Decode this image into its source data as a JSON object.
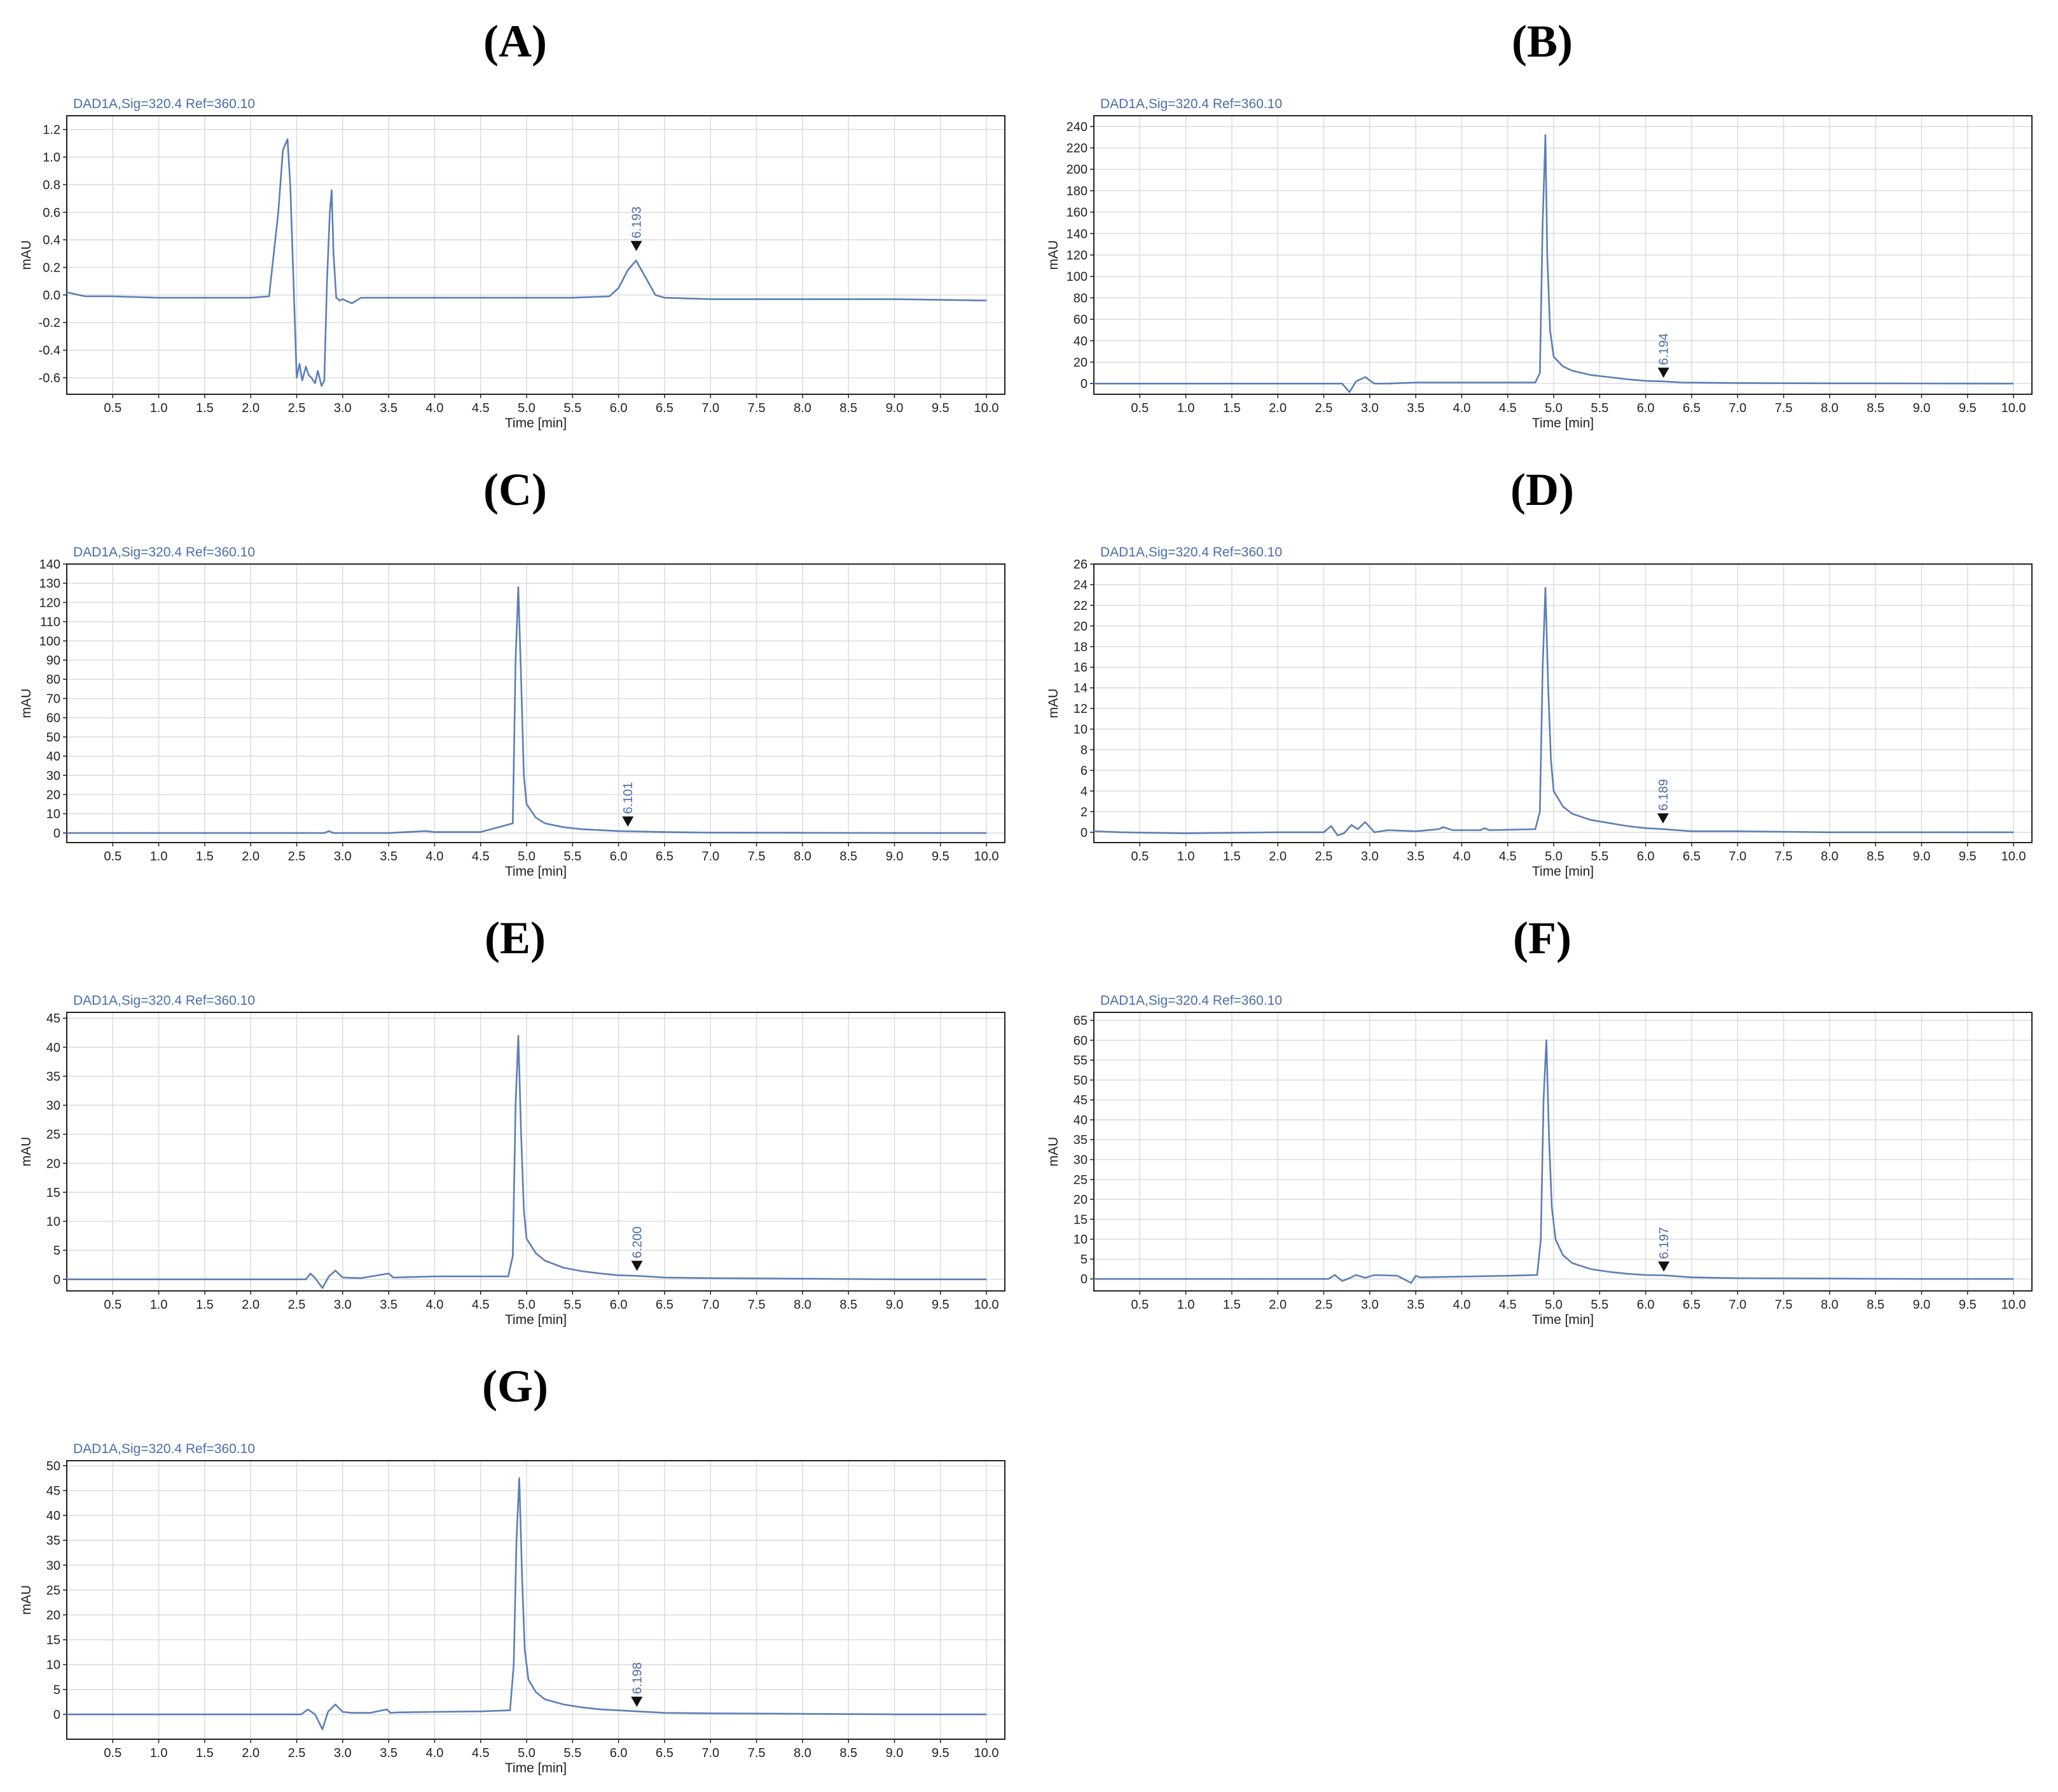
{
  "chart_data": [
    {
      "panel": "(A)",
      "type": "line",
      "signal": "DAD1A,Sig=320.4  Ref=360.10",
      "xlabel": "Time [min]",
      "ylabel": "mAU",
      "xlim": [
        0,
        10.2
      ],
      "ylim": [
        -0.72,
        1.3
      ],
      "xticks": [
        0.5,
        1.0,
        1.5,
        2.0,
        2.5,
        3.0,
        3.5,
        4.0,
        4.5,
        5.0,
        5.5,
        6.0,
        6.5,
        7.0,
        7.5,
        8.0,
        8.5,
        9.0,
        9.5,
        10.0
      ],
      "yticks": [
        -0.6,
        -0.4,
        -0.2,
        0.0,
        0.2,
        0.4,
        0.6,
        0.8,
        1.0,
        1.2
      ],
      "ytick_labels": [
        "-0.6",
        "-0.4",
        "-0.2",
        "0.0",
        "0.2",
        "0.4",
        "0.6",
        "0.8",
        "1.0",
        "1.2"
      ],
      "peak": {
        "label": "6.193",
        "x": 6.193,
        "y": 0.3
      },
      "series": [
        {
          "x": [
            0.0,
            0.2,
            0.5,
            1.0,
            1.5,
            2.0,
            2.2,
            2.3,
            2.35,
            2.4,
            2.43,
            2.47,
            2.5,
            2.53,
            2.56,
            2.6,
            2.63,
            2.66,
            2.7,
            2.73,
            2.77,
            2.8,
            2.83,
            2.86,
            2.88,
            2.9,
            2.93,
            2.97,
            3.0,
            3.1,
            3.2,
            3.3,
            3.5,
            4.0,
            4.5,
            5.0,
            5.5,
            5.9,
            6.0,
            6.1,
            6.19,
            6.3,
            6.4,
            6.5,
            7.0,
            8.0,
            9.0,
            10.0
          ],
          "y": [
            0.02,
            -0.01,
            -0.01,
            -0.02,
            -0.02,
            -0.02,
            -0.01,
            0.6,
            1.05,
            1.13,
            0.8,
            0.0,
            -0.6,
            -0.5,
            -0.62,
            -0.52,
            -0.58,
            -0.6,
            -0.64,
            -0.55,
            -0.66,
            -0.62,
            0.1,
            0.6,
            0.76,
            0.3,
            -0.02,
            -0.04,
            -0.03,
            -0.06,
            -0.02,
            -0.02,
            -0.02,
            -0.02,
            -0.02,
            -0.02,
            -0.02,
            -0.01,
            0.05,
            0.18,
            0.25,
            0.12,
            0.0,
            -0.02,
            -0.03,
            -0.03,
            -0.03,
            -0.04
          ]
        }
      ]
    },
    {
      "panel": "(B)",
      "type": "line",
      "signal": "DAD1A,Sig=320.4  Ref=360.10",
      "xlabel": "Time [min]",
      "ylabel": "mAU",
      "xlim": [
        0,
        10.2
      ],
      "ylim": [
        -10,
        250
      ],
      "xticks": [
        0.5,
        1.0,
        1.5,
        2.0,
        2.5,
        3.0,
        3.5,
        4.0,
        4.5,
        5.0,
        5.5,
        6.0,
        6.5,
        7.0,
        7.5,
        8.0,
        8.5,
        9.0,
        9.5,
        10.0
      ],
      "yticks": [
        0,
        20,
        40,
        60,
        80,
        100,
        120,
        140,
        160,
        180,
        200,
        220,
        240
      ],
      "ytick_labels": [
        "0",
        "20",
        "40",
        "60",
        "80",
        "100",
        "120",
        "140",
        "160",
        "180",
        "200",
        "220",
        "240"
      ],
      "peak": {
        "label": "6.194",
        "x": 6.194,
        "y": 3
      },
      "series": [
        {
          "x": [
            0.0,
            1.0,
            2.0,
            2.7,
            2.78,
            2.85,
            2.95,
            3.05,
            3.2,
            3.5,
            4.0,
            4.5,
            4.8,
            4.85,
            4.88,
            4.91,
            4.93,
            4.96,
            5.0,
            5.1,
            5.2,
            5.4,
            5.6,
            5.8,
            6.0,
            6.2,
            6.4,
            7.0,
            8.0,
            9.0,
            10.0
          ],
          "y": [
            0,
            0,
            0,
            0,
            -8,
            2,
            6,
            0,
            0,
            1,
            1,
            1,
            1,
            10,
            150,
            232,
            120,
            50,
            25,
            16,
            12,
            8,
            6,
            4,
            2.5,
            2,
            1,
            0.5,
            0.2,
            0.1,
            0
          ]
        }
      ]
    },
    {
      "panel": "(C)",
      "type": "line",
      "signal": "DAD1A,Sig=320.4  Ref=360.10",
      "xlabel": "Time [min]",
      "ylabel": "mAU",
      "xlim": [
        0,
        10.2
      ],
      "ylim": [
        -5,
        140
      ],
      "xticks": [
        0.5,
        1.0,
        1.5,
        2.0,
        2.5,
        3.0,
        3.5,
        4.0,
        4.5,
        5.0,
        5.5,
        6.0,
        6.5,
        7.0,
        7.5,
        8.0,
        8.5,
        9.0,
        9.5,
        10.0
      ],
      "yticks": [
        0,
        10,
        20,
        30,
        40,
        50,
        60,
        70,
        80,
        90,
        100,
        110,
        120,
        130,
        140
      ],
      "ytick_labels": [
        "0",
        "10",
        "20",
        "30",
        "40",
        "50",
        "60",
        "70",
        "80",
        "90",
        "100",
        "110",
        "120",
        "130",
        "140"
      ],
      "peak": {
        "label": "6.101",
        "x": 6.101,
        "y": 2
      },
      "series": [
        {
          "x": [
            0.0,
            1.0,
            2.0,
            2.8,
            2.85,
            2.9,
            3.5,
            3.9,
            4.0,
            4.5,
            4.85,
            4.88,
            4.91,
            4.94,
            4.97,
            5.0,
            5.1,
            5.2,
            5.4,
            5.6,
            5.8,
            6.0,
            6.2,
            6.5,
            7.0,
            8.0,
            9.0,
            10.0
          ],
          "y": [
            0,
            0,
            0,
            0,
            1,
            0,
            0,
            1,
            0.5,
            0.5,
            5,
            90,
            128,
            80,
            30,
            15,
            8,
            5,
            3,
            2,
            1.5,
            1,
            0.8,
            0.5,
            0.2,
            0.1,
            0,
            0
          ]
        }
      ]
    },
    {
      "panel": "(D)",
      "type": "line",
      "signal": "DAD1A,Sig=320.4  Ref=360.10",
      "xlabel": "Time [min]",
      "ylabel": "mAU",
      "xlim": [
        0,
        10.2
      ],
      "ylim": [
        -1,
        26
      ],
      "xticks": [
        0.5,
        1.0,
        1.5,
        2.0,
        2.5,
        3.0,
        3.5,
        4.0,
        4.5,
        5.0,
        5.5,
        6.0,
        6.5,
        7.0,
        7.5,
        8.0,
        8.5,
        9.0,
        9.5,
        10.0
      ],
      "yticks": [
        0,
        2,
        4,
        6,
        8,
        10,
        12,
        14,
        16,
        18,
        20,
        22,
        24,
        26
      ],
      "ytick_labels": [
        "0",
        "2",
        "4",
        "6",
        "8",
        "10",
        "12",
        "14",
        "16",
        "18",
        "20",
        "22",
        "24",
        "26"
      ],
      "peak": {
        "label": "6.189",
        "x": 6.189,
        "y": 0.6
      },
      "series": [
        {
          "x": [
            0.0,
            0.3,
            1.0,
            2.0,
            2.5,
            2.58,
            2.65,
            2.72,
            2.8,
            2.87,
            2.95,
            3.05,
            3.2,
            3.5,
            3.75,
            3.8,
            3.9,
            4.2,
            4.25,
            4.3,
            4.8,
            4.85,
            4.88,
            4.91,
            4.94,
            4.97,
            5.0,
            5.1,
            5.2,
            5.4,
            5.6,
            5.8,
            6.0,
            6.2,
            6.5,
            7.0,
            8.0,
            9.0,
            10.0
          ],
          "y": [
            0.1,
            0.0,
            -0.1,
            0.0,
            0.0,
            0.6,
            -0.3,
            -0.1,
            0.7,
            0.3,
            1.0,
            0.0,
            0.2,
            0.1,
            0.3,
            0.5,
            0.2,
            0.2,
            0.4,
            0.2,
            0.3,
            2,
            16,
            23.7,
            14,
            7,
            4,
            2.5,
            1.8,
            1.2,
            0.9,
            0.6,
            0.4,
            0.3,
            0.1,
            0.1,
            0.0,
            0.0,
            0.0
          ]
        }
      ]
    },
    {
      "panel": "(E)",
      "type": "line",
      "signal": "DAD1A,Sig=320.4  Ref=360.10",
      "xlabel": "Time [min]",
      "ylabel": "mAU",
      "xlim": [
        0,
        10.2
      ],
      "ylim": [
        -2,
        46
      ],
      "xticks": [
        0.5,
        1.0,
        1.5,
        2.0,
        2.5,
        3.0,
        3.5,
        4.0,
        4.5,
        5.0,
        5.5,
        6.0,
        6.5,
        7.0,
        7.5,
        8.0,
        8.5,
        9.0,
        9.5,
        10.0
      ],
      "yticks": [
        0,
        5,
        10,
        15,
        20,
        25,
        30,
        35,
        40,
        45
      ],
      "ytick_labels": [
        "0",
        "5",
        "10",
        "15",
        "20",
        "25",
        "30",
        "35",
        "40",
        "45"
      ],
      "peak": {
        "label": "6.200",
        "x": 6.2,
        "y": 1
      },
      "series": [
        {
          "x": [
            0.0,
            1.0,
            2.0,
            2.6,
            2.65,
            2.7,
            2.78,
            2.85,
            2.92,
            3.0,
            3.2,
            3.5,
            3.55,
            4.0,
            4.5,
            4.8,
            4.85,
            4.88,
            4.91,
            4.94,
            4.97,
            5.0,
            5.1,
            5.2,
            5.4,
            5.6,
            5.8,
            6.0,
            6.2,
            6.5,
            7.0,
            8.0,
            9.0,
            10.0
          ],
          "y": [
            0,
            0,
            0,
            0,
            1,
            0.2,
            -1.5,
            0.5,
            1.5,
            0.3,
            0.2,
            1.0,
            0.3,
            0.5,
            0.5,
            0.5,
            4,
            30,
            42,
            25,
            12,
            7,
            4.5,
            3.2,
            2,
            1.4,
            1,
            0.7,
            0.6,
            0.3,
            0.2,
            0.1,
            0,
            0
          ]
        }
      ]
    },
    {
      "panel": "(F)",
      "type": "line",
      "signal": "DAD1A,Sig=320.4  Ref=360.10",
      "xlabel": "Time [min]",
      "ylabel": "mAU",
      "xlim": [
        0,
        10.2
      ],
      "ylim": [
        -3,
        67
      ],
      "xticks": [
        0.5,
        1.0,
        1.5,
        2.0,
        2.5,
        3.0,
        3.5,
        4.0,
        4.5,
        5.0,
        5.5,
        6.0,
        6.5,
        7.0,
        7.5,
        8.0,
        8.5,
        9.0,
        9.5,
        10.0
      ],
      "yticks": [
        0,
        5,
        10,
        15,
        20,
        25,
        30,
        35,
        40,
        45,
        50,
        55,
        60,
        65
      ],
      "ytick_labels": [
        "0",
        "5",
        "10",
        "15",
        "20",
        "25",
        "30",
        "35",
        "40",
        "45",
        "50",
        "55",
        "60",
        "65"
      ],
      "peak": {
        "label": "6.197",
        "x": 6.197,
        "y": 1.2
      },
      "series": [
        {
          "x": [
            0.0,
            1.0,
            2.0,
            2.55,
            2.62,
            2.7,
            2.78,
            2.85,
            2.95,
            3.05,
            3.3,
            3.45,
            3.5,
            3.55,
            4.0,
            4.5,
            4.82,
            4.86,
            4.89,
            4.92,
            4.95,
            4.98,
            5.02,
            5.1,
            5.2,
            5.4,
            5.6,
            5.8,
            6.0,
            6.2,
            6.5,
            7.0,
            8.0,
            9.0,
            10.0
          ],
          "y": [
            0,
            0,
            0,
            0,
            1,
            -0.5,
            0.2,
            1,
            0.3,
            1,
            0.8,
            -1,
            0.8,
            0.4,
            0.6,
            0.8,
            1,
            10,
            45,
            60,
            35,
            18,
            10,
            6,
            4,
            2.5,
            1.8,
            1.3,
            1,
            0.9,
            0.4,
            0.2,
            0.1,
            0,
            0
          ]
        }
      ]
    },
    {
      "panel": "(G)",
      "type": "line",
      "signal": "DAD1A,Sig=320.4  Ref=360.10",
      "xlabel": "Time [min]",
      "ylabel": "mAU",
      "xlim": [
        0,
        10.2
      ],
      "ylim": [
        -5,
        51
      ],
      "xticks": [
        0.5,
        1.0,
        1.5,
        2.0,
        2.5,
        3.0,
        3.5,
        4.0,
        4.5,
        5.0,
        5.5,
        6.0,
        6.5,
        7.0,
        7.5,
        8.0,
        8.5,
        9.0,
        9.5,
        10.0
      ],
      "yticks": [
        0,
        5,
        10,
        15,
        20,
        25,
        30,
        35,
        40,
        45,
        50
      ],
      "ytick_labels": [
        "0",
        "5",
        "10",
        "15",
        "20",
        "25",
        "30",
        "35",
        "40",
        "45",
        "50"
      ],
      "peak": {
        "label": "6.198",
        "x": 6.198,
        "y": 1
      },
      "series": [
        {
          "x": [
            0.0,
            1.0,
            2.0,
            2.55,
            2.62,
            2.7,
            2.78,
            2.84,
            2.92,
            3.0,
            3.1,
            3.3,
            3.48,
            3.52,
            3.6,
            4.0,
            4.5,
            4.82,
            4.86,
            4.89,
            4.92,
            4.95,
            4.98,
            5.02,
            5.1,
            5.2,
            5.4,
            5.6,
            5.8,
            6.0,
            6.2,
            6.5,
            7.0,
            8.0,
            9.0,
            10.0
          ],
          "y": [
            0,
            0,
            0,
            0,
            1,
            0,
            -3,
            0.5,
            2,
            0.5,
            0.3,
            0.3,
            1,
            0.3,
            0.4,
            0.5,
            0.6,
            0.8,
            10,
            35,
            47.5,
            28,
            13,
            7,
            4.5,
            3,
            2,
            1.4,
            1,
            0.8,
            0.6,
            0.3,
            0.2,
            0.1,
            0,
            0
          ]
        }
      ]
    }
  ]
}
